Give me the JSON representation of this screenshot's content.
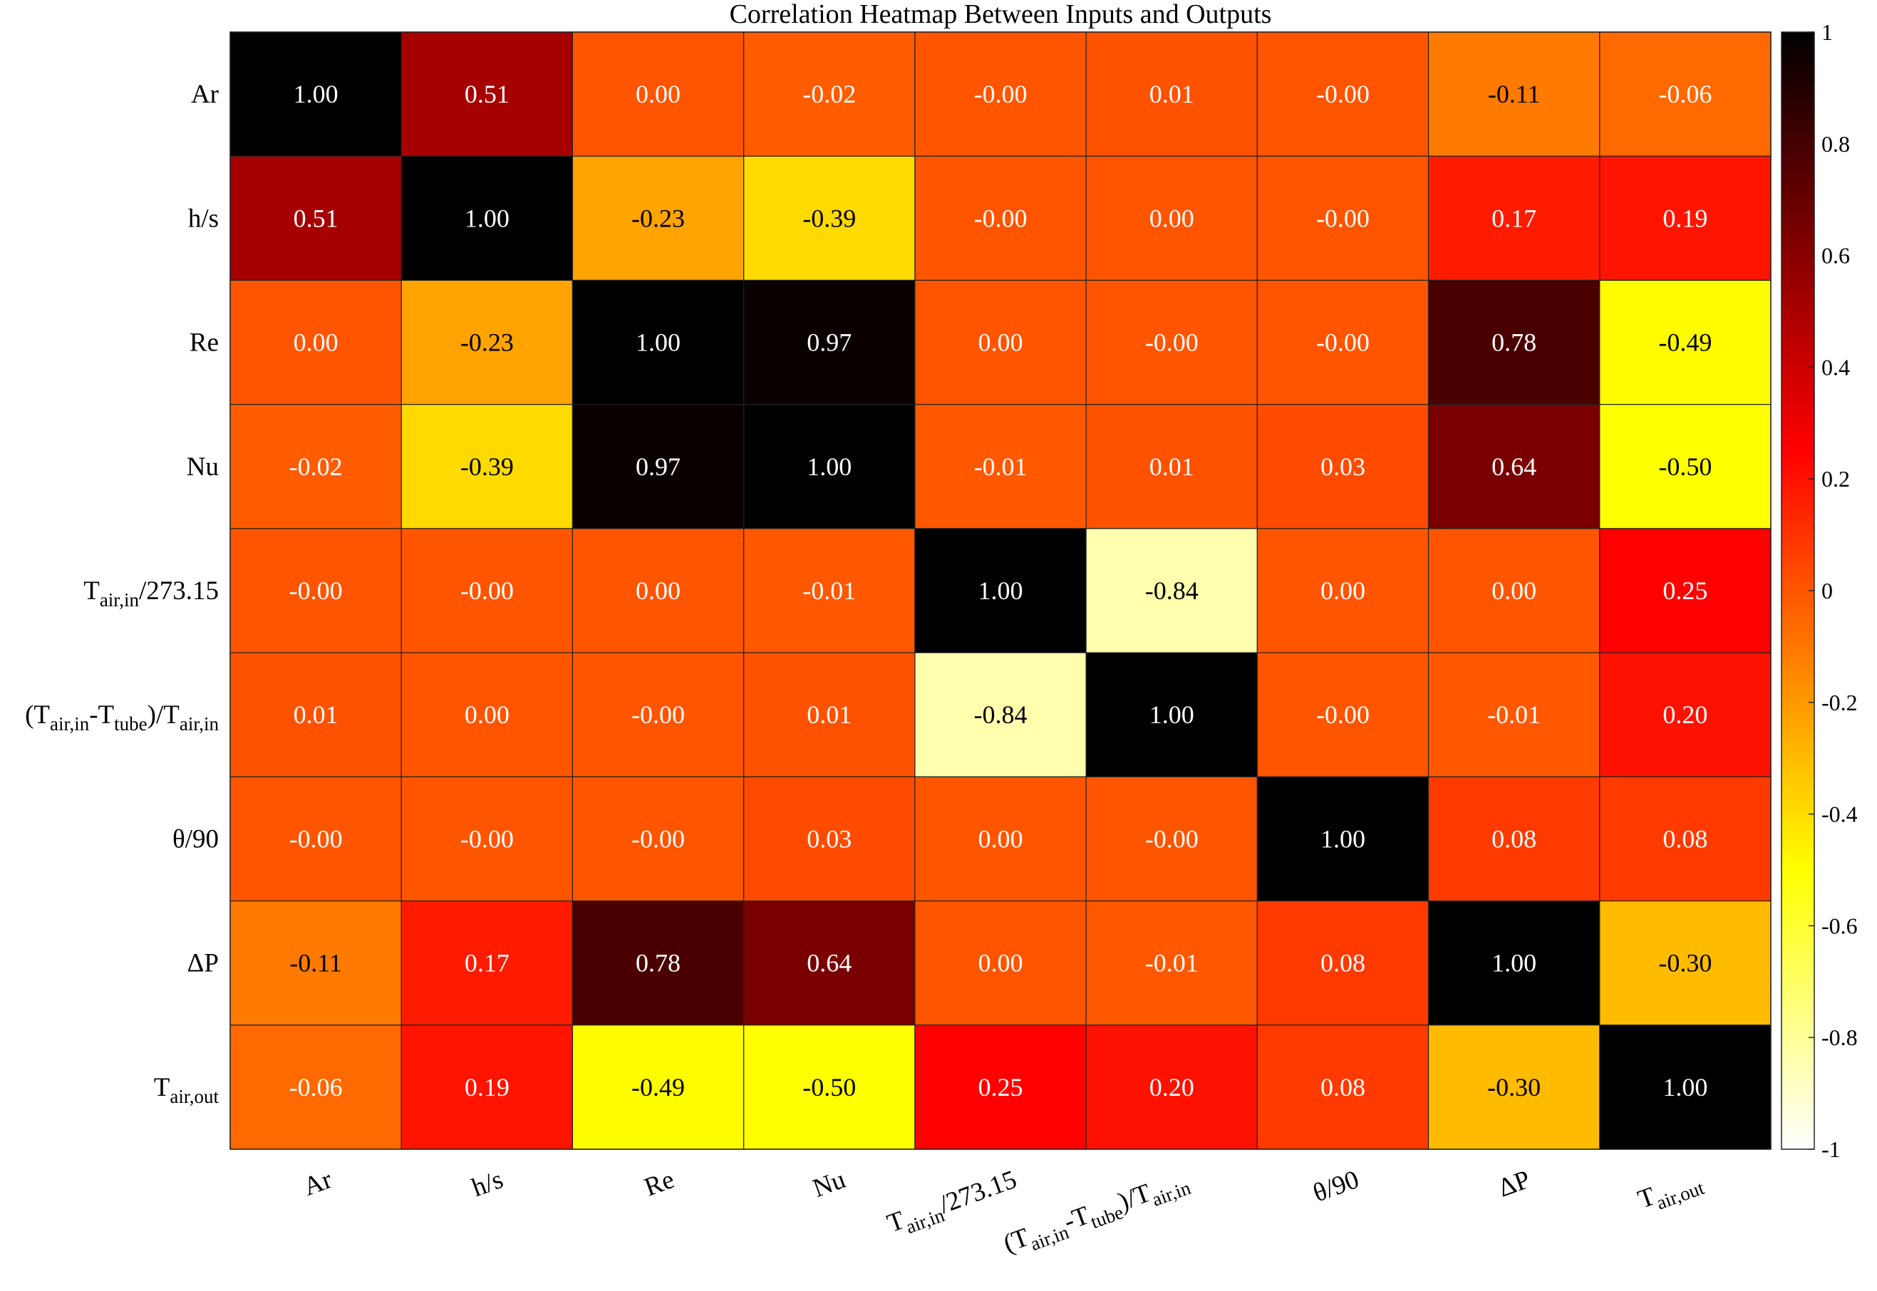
{
  "chart_data": {
    "type": "heatmap",
    "title": "Correlation Heatmap Between Inputs and Outputs",
    "categories": [
      [
        "Ar"
      ],
      [
        "h/s"
      ],
      [
        "Re"
      ],
      [
        "Nu"
      ],
      [
        "T",
        {
          "sub": "air,in"
        },
        "/273.15"
      ],
      [
        "(T",
        {
          "sub": "air,in"
        },
        "-T",
        {
          "sub": "tube"
        },
        ")/T",
        {
          "sub": "air,in"
        }
      ],
      [
        "θ/90"
      ],
      [
        "ΔP"
      ],
      [
        "T",
        {
          "sub": "air,out"
        }
      ]
    ],
    "values": [
      [
        1.0,
        0.51,
        0.0,
        -0.02,
        -0.001,
        0.01,
        -0.001,
        -0.11,
        -0.06
      ],
      [
        0.51,
        1.0,
        -0.23,
        -0.39,
        -0.001,
        0.0,
        -0.001,
        0.17,
        0.19
      ],
      [
        0.0,
        -0.23,
        1.0,
        0.97,
        0.0,
        -0.001,
        -0.001,
        0.78,
        -0.49
      ],
      [
        -0.02,
        -0.39,
        0.97,
        1.0,
        -0.01,
        0.01,
        0.03,
        0.64,
        -0.5
      ],
      [
        -0.001,
        -0.001,
        0.0,
        -0.01,
        1.0,
        -0.84,
        0.0,
        0.0,
        0.25
      ],
      [
        0.01,
        0.0,
        -0.001,
        0.01,
        -0.84,
        1.0,
        -0.001,
        -0.01,
        0.2
      ],
      [
        -0.001,
        -0.001,
        -0.001,
        0.03,
        0.0,
        -0.001,
        1.0,
        0.08,
        0.08
      ],
      [
        -0.11,
        0.17,
        0.78,
        0.64,
        0.0,
        -0.01,
        0.08,
        1.0,
        -0.3
      ],
      [
        -0.06,
        0.19,
        -0.49,
        -0.5,
        0.25,
        0.2,
        0.08,
        -0.3,
        1.0
      ]
    ],
    "value_labels": [
      [
        "1.00",
        "0.51",
        "0.00",
        "-0.02",
        "-0.00",
        "0.01",
        "-0.00",
        "-0.11",
        "-0.06"
      ],
      [
        "0.51",
        "1.00",
        "-0.23",
        "-0.39",
        "-0.00",
        "0.00",
        "-0.00",
        "0.17",
        "0.19"
      ],
      [
        "0.00",
        "-0.23",
        "1.00",
        "0.97",
        "0.00",
        "-0.00",
        "-0.00",
        "0.78",
        "-0.49"
      ],
      [
        "-0.02",
        "-0.39",
        "0.97",
        "1.00",
        "-0.01",
        "0.01",
        "0.03",
        "0.64",
        "-0.50"
      ],
      [
        "-0.00",
        "-0.00",
        "0.00",
        "-0.01",
        "1.00",
        "-0.84",
        "0.00",
        "0.00",
        "0.25"
      ],
      [
        "0.01",
        "0.00",
        "-0.00",
        "0.01",
        "-0.84",
        "1.00",
        "-0.00",
        "-0.01",
        "0.20"
      ],
      [
        "-0.00",
        "-0.00",
        "-0.00",
        "0.03",
        "0.00",
        "-0.00",
        "1.00",
        "0.08",
        "0.08"
      ],
      [
        "-0.11",
        "0.17",
        "0.78",
        "0.64",
        "0.00",
        "-0.01",
        "0.08",
        "1.00",
        "-0.30"
      ],
      [
        "-0.06",
        "0.19",
        "-0.49",
        "-0.50",
        "0.25",
        "0.20",
        "0.08",
        "-0.30",
        "1.00"
      ]
    ],
    "colormap": "hot",
    "colormap_reversed": true,
    "clim": [
      -1,
      1
    ],
    "cticks": [
      -1,
      -0.8,
      -0.6,
      -0.4,
      -0.2,
      0,
      0.2,
      0.4,
      0.6,
      0.8,
      1
    ]
  }
}
